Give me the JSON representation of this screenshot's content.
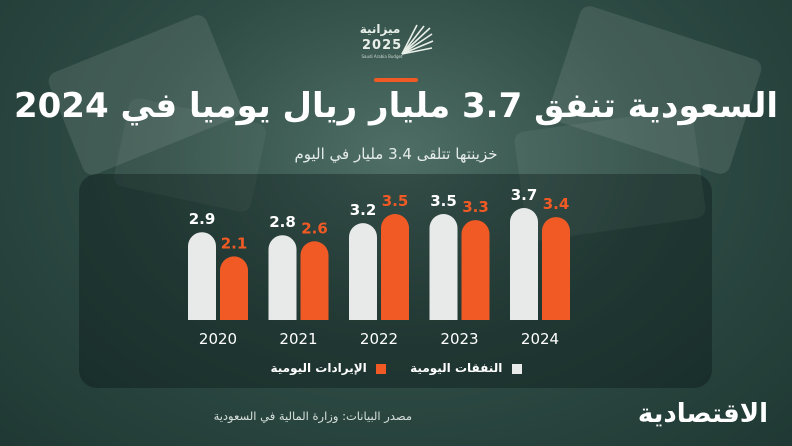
{
  "header": {
    "logo_text": "ميزانية",
    "logo_year": "2025",
    "logo_caption": "Saudi Arabia Budget",
    "title": "السعودية تنفق 3.7 مليار ريال يوميا في 2024",
    "subtitle": "خزينتها تتلقى 3.4 مليار في اليوم"
  },
  "colors": {
    "spending": "#e8e9e9",
    "revenue": "#f15a24",
    "accent": "#f15a24"
  },
  "chart_data": {
    "type": "bar",
    "categories": [
      "2020",
      "2021",
      "2022",
      "2023",
      "2024"
    ],
    "series": [
      {
        "name": "النفقات اليومية",
        "values": [
          2.9,
          2.8,
          3.2,
          3.5,
          3.7
        ]
      },
      {
        "name": "الإيرادات اليومية",
        "values": [
          2.1,
          2.6,
          3.5,
          3.3,
          3.4
        ]
      }
    ],
    "ylim": [
      0,
      3.7
    ],
    "grid": false,
    "legend": "bottom-center"
  },
  "footer": {
    "source": "مصدر البيانات: وزارة المالية في السعودية",
    "brand": "الاقتصادية"
  }
}
